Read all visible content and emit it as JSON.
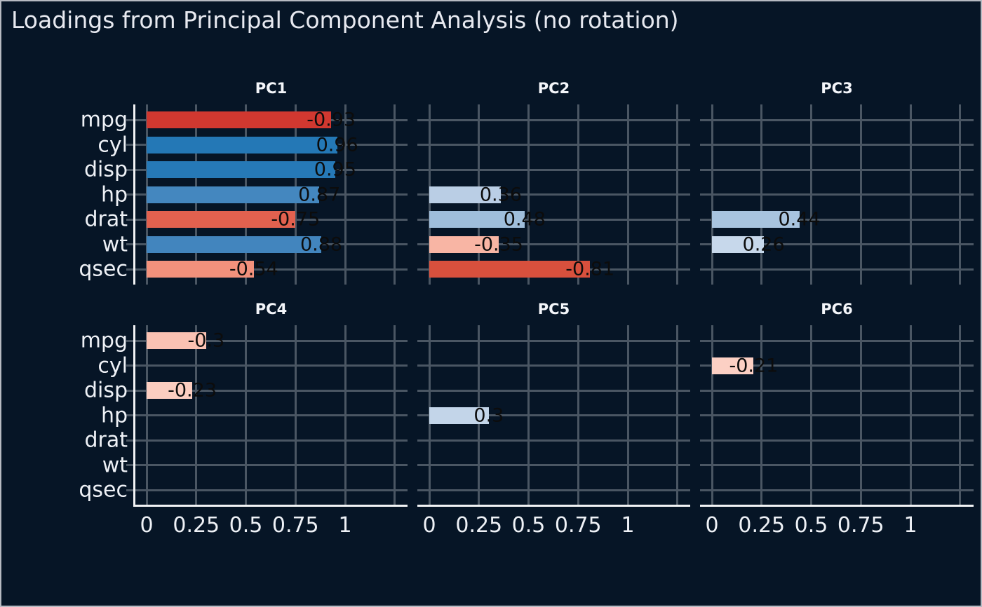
{
  "title": "Loadings from Principal Component Analysis (no rotation)",
  "colors": {
    "background": "#061526",
    "frame_border": "#b6bac2",
    "gridline": "#4a5663",
    "axis_line": "#f2f3f5",
    "text_light": "#eef1f6",
    "bar_label_text": "#0c0c0c"
  },
  "chart_data": {
    "type": "bar",
    "orientation": "horizontal",
    "title": "Loadings from Principal Component Analysis (no rotation)",
    "grid": true,
    "categories": [
      "mpg",
      "cyl",
      "disp",
      "hp",
      "drat",
      "wt",
      "qsec"
    ],
    "x_ticks": [
      {
        "label": "0",
        "value": 0
      },
      {
        "label": "0.25",
        "value": 0.25
      },
      {
        "label": "0.5",
        "value": 0.5
      },
      {
        "label": "0.75",
        "value": 0.75
      },
      {
        "label": "1",
        "value": 1
      }
    ],
    "x_gridline_values": [
      0,
      0.25,
      0.5,
      0.75,
      1,
      1.25
    ],
    "xlim": [
      -0.06,
      1.31
    ],
    "bar_length_is_absolute_value": true,
    "color_encoding": "sign and magnitude of loading (red = negative, blue = positive)",
    "facets": [
      {
        "label": "PC1",
        "bars": [
          {
            "category": "mpg",
            "value": -0.93,
            "label": "-0.93",
            "color": "#d13830"
          },
          {
            "category": "cyl",
            "value": 0.96,
            "label": "0.96",
            "color": "#2478b6"
          },
          {
            "category": "disp",
            "value": 0.95,
            "label": "0.95",
            "color": "#2679b7"
          },
          {
            "category": "hp",
            "value": 0.87,
            "label": "0.87",
            "color": "#4487bf"
          },
          {
            "category": "drat",
            "value": -0.75,
            "label": "-0.75",
            "color": "#e2614f"
          },
          {
            "category": "wt",
            "value": 0.88,
            "label": "0.88",
            "color": "#4285be"
          },
          {
            "category": "qsec",
            "value": -0.54,
            "label": "-0.54",
            "color": "#f2917c"
          }
        ]
      },
      {
        "label": "PC2",
        "bars": [
          {
            "category": "hp",
            "value": 0.36,
            "label": "0.36",
            "color": "#bacee5"
          },
          {
            "category": "drat",
            "value": 0.48,
            "label": "0.48",
            "color": "#9fbedb"
          },
          {
            "category": "wt",
            "value": -0.35,
            "label": "-0.35",
            "color": "#f8b5a4"
          },
          {
            "category": "qsec",
            "value": -0.81,
            "label": "-0.81",
            "color": "#d8503d"
          }
        ]
      },
      {
        "label": "PC3",
        "bars": [
          {
            "category": "drat",
            "value": 0.44,
            "label": "0.44",
            "color": "#a8c4df"
          },
          {
            "category": "wt",
            "value": 0.26,
            "label": "0.26",
            "color": "#c7d8eb"
          }
        ]
      },
      {
        "label": "PC4",
        "bars": [
          {
            "category": "mpg",
            "value": -0.3,
            "label": "-0.3",
            "color": "#fac2b3"
          },
          {
            "category": "disp",
            "value": -0.23,
            "label": "-0.23",
            "color": "#fbcdc0"
          }
        ]
      },
      {
        "label": "PC5",
        "bars": [
          {
            "category": "hp",
            "value": 0.3,
            "label": "0.3",
            "color": "#c3d5e9"
          }
        ]
      },
      {
        "label": "PC6",
        "bars": [
          {
            "category": "cyl",
            "value": -0.21,
            "label": "-0.21",
            "color": "#fcd0c4"
          }
        ]
      }
    ]
  }
}
